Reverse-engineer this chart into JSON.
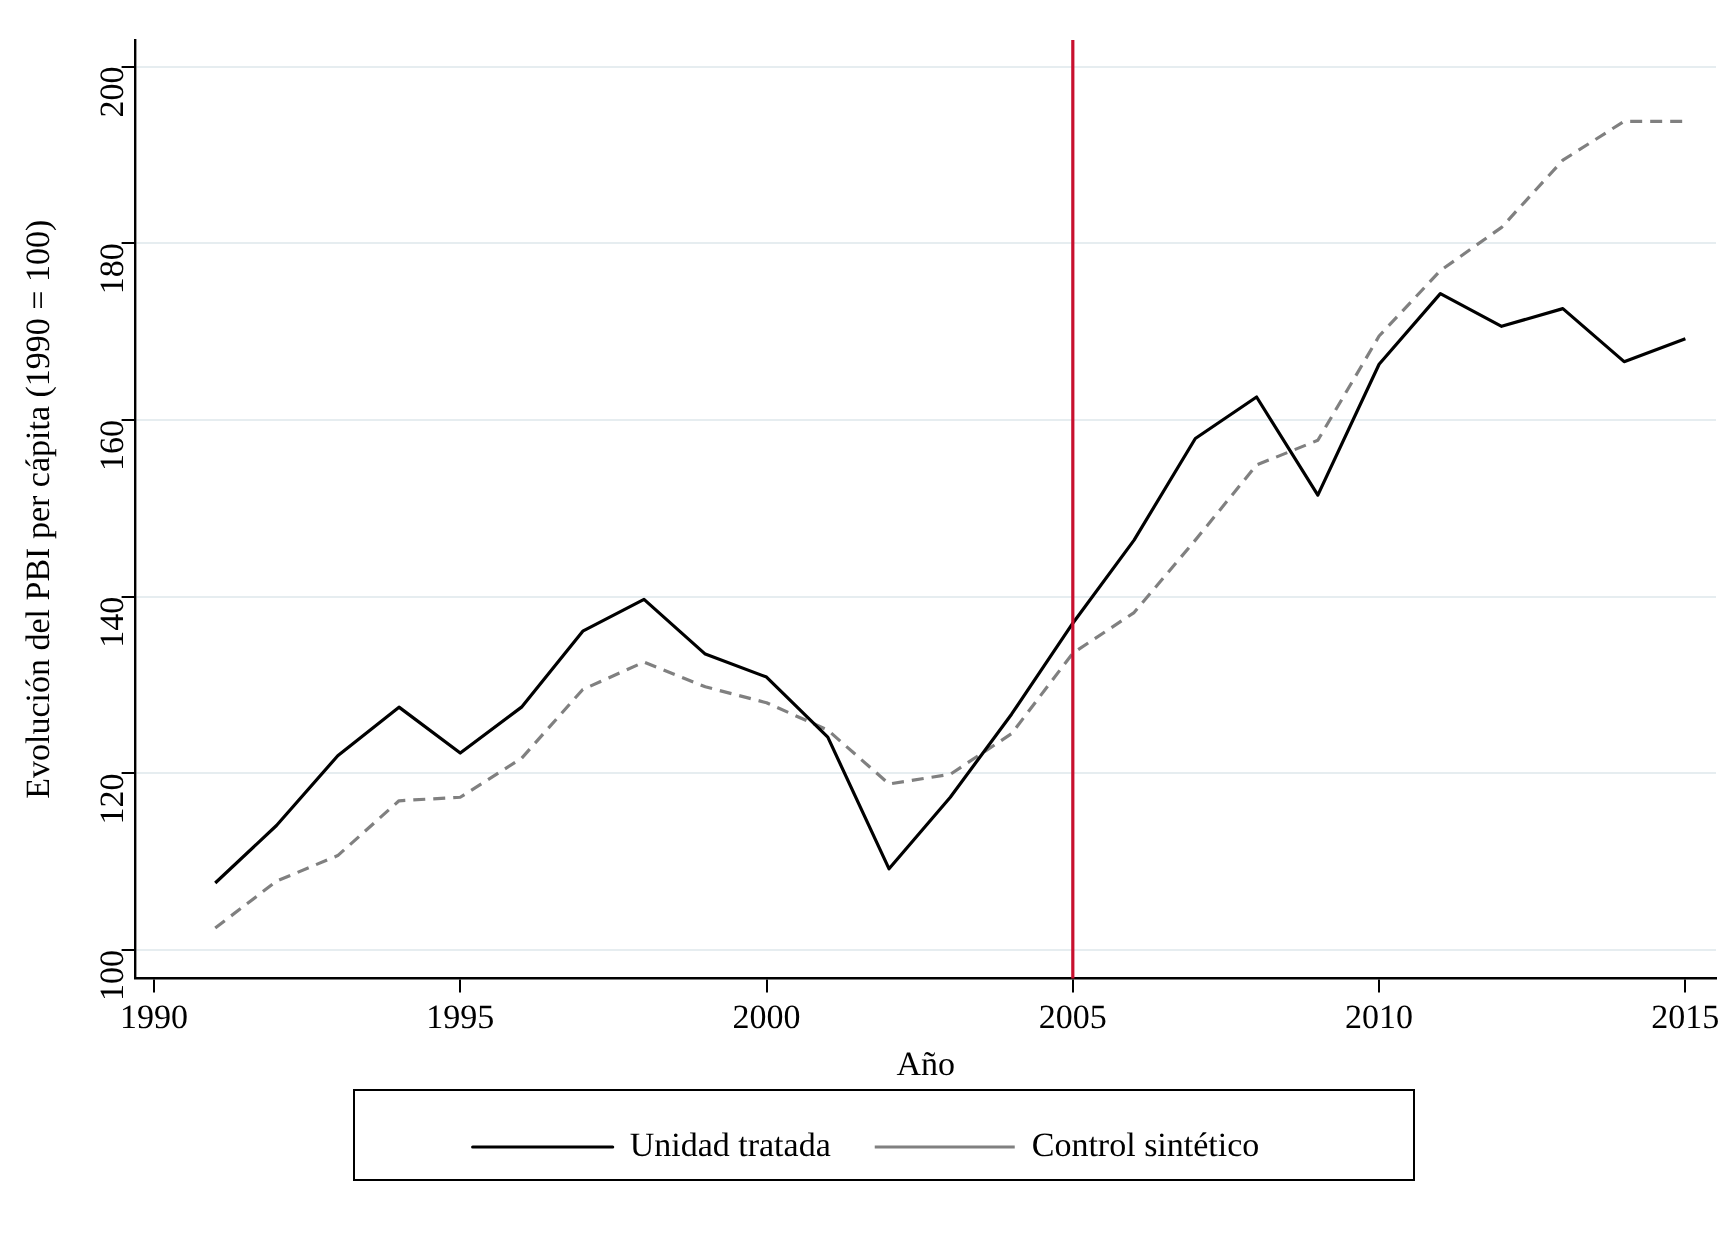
{
  "chart_data": {
    "type": "line",
    "xlabel": "Año",
    "ylabel": "Evolución del PBI per cápita (1990 = 100)",
    "x": [
      1991,
      1992,
      1993,
      1994,
      1995,
      1996,
      1997,
      1998,
      1999,
      2000,
      2001,
      2002,
      2003,
      2004,
      2005,
      2006,
      2007,
      2008,
      2009,
      2010,
      2011,
      2012,
      2013,
      2014,
      2015
    ],
    "series": [
      {
        "name": "Unidad tratada",
        "color": "#000000",
        "line_style": "solid",
        "values": [
          107.6,
          114.1,
          122.0,
          127.5,
          122.3,
          127.5,
          136.1,
          139.7,
          133.5,
          130.9,
          124.1,
          109.2,
          117.3,
          126.7,
          137.0,
          146.4,
          157.9,
          162.6,
          151.5,
          166.3,
          174.3,
          170.6,
          172.6,
          166.6,
          169.2
        ]
      },
      {
        "name": "Control sintético",
        "color": "#808080",
        "line_style": "dashed",
        "values": [
          102.5,
          107.8,
          110.7,
          116.9,
          117.3,
          121.7,
          129.5,
          132.6,
          129.8,
          128.0,
          124.9,
          118.8,
          119.9,
          124.5,
          133.6,
          138.2,
          146.4,
          154.9,
          157.7,
          169.5,
          176.9,
          181.8,
          189.4,
          193.8,
          193.8
        ]
      }
    ],
    "xlim": [
      1989.7,
      2015.5
    ],
    "xticks": [
      1990,
      1995,
      2000,
      2005,
      2010,
      2015
    ],
    "ylim": [
      96.8,
      203
    ],
    "yticks": [
      100,
      120,
      140,
      160,
      180,
      200
    ],
    "ref_lines": [
      {
        "axis": "x",
        "value": 2005,
        "color": "#c8102e"
      }
    ],
    "grid": "y",
    "legend": "bottom",
    "marker": "none"
  }
}
